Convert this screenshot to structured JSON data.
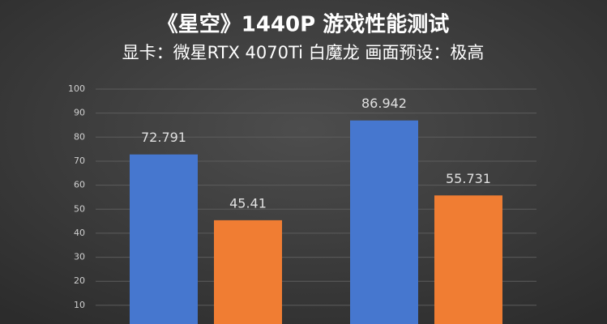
{
  "chart_data": {
    "type": "bar",
    "title": "《星空》1440P 游戏性能测试",
    "subtitle": "显卡：微星RTX 4070Ti 白魔龙 画面预设：极高",
    "categories": [
      null,
      null
    ],
    "series": [
      {
        "color": "#4677cf",
        "values": [
          72.791,
          86.942
        ]
      },
      {
        "color": "#f07d33",
        "values": [
          45.41,
          55.731
        ]
      }
    ],
    "ylim": [
      2.2,
      100
    ],
    "yticks": [
      10,
      20,
      30,
      40,
      50,
      60,
      70,
      80,
      90,
      100
    ],
    "grid": true
  }
}
